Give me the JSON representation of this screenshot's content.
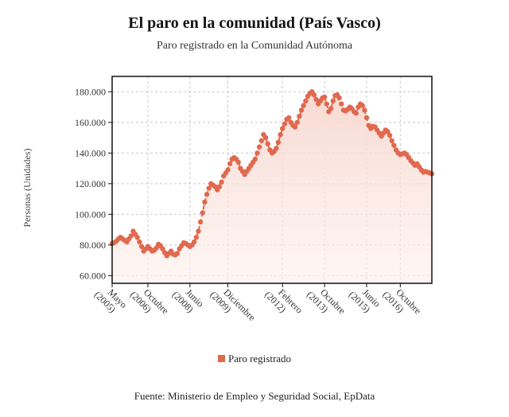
{
  "chart_data": {
    "type": "line",
    "title": "El paro en la comunidad (País Vasco)",
    "subtitle": "Paro registrado en la Comunidad Autónoma",
    "ylabel": "Personas (Unidades)",
    "xlabel": "",
    "ylim": [
      55000,
      190000
    ],
    "yticks": [
      60000,
      80000,
      100000,
      120000,
      140000,
      160000,
      180000
    ],
    "ytick_labels": [
      "60.000",
      "80.000",
      "100.000",
      "120.000",
      "140.000",
      "160.000",
      "180.000"
    ],
    "xticks": [
      {
        "index": 0,
        "line1": "Mayo",
        "line2": "(2005)"
      },
      {
        "index": 17,
        "line1": "Octubre",
        "line2": "(2006)"
      },
      {
        "index": 37,
        "line1": "Junio",
        "line2": "(2008)"
      },
      {
        "index": 55,
        "line1": "Diciembre",
        "line2": "(2009)"
      },
      {
        "index": 81,
        "line1": "Febrero",
        "line2": "(2012)"
      },
      {
        "index": 101,
        "line1": "Octubre",
        "line2": "(2013)"
      },
      {
        "index": 121,
        "line1": "Junio",
        "line2": "(2015)"
      },
      {
        "index": 137,
        "line1": "Octubre",
        "line2": "(2016)"
      }
    ],
    "grid": true,
    "legend_position": "bottom",
    "series": [
      {
        "name": "Paro registrado",
        "color": "#e0694e",
        "values": [
          81000,
          81500,
          82500,
          84000,
          85000,
          84000,
          83000,
          82000,
          84000,
          86000,
          89000,
          87000,
          85000,
          82000,
          79000,
          76000,
          77500,
          79000,
          77500,
          76000,
          76500,
          78000,
          80500,
          79500,
          77500,
          75000,
          73000,
          74500,
          76000,
          74000,
          73500,
          74500,
          77500,
          79500,
          81500,
          81000,
          80000,
          79000,
          80000,
          82000,
          85000,
          89000,
          95000,
          101000,
          108000,
          113000,
          117000,
          120000,
          119000,
          118000,
          116000,
          118000,
          121000,
          125000,
          127000,
          129000,
          133000,
          136000,
          137000,
          136000,
          134000,
          130000,
          128000,
          126000,
          128000,
          130000,
          132000,
          134000,
          136000,
          140000,
          144000,
          148000,
          152000,
          150000,
          146000,
          142000,
          140000,
          141000,
          143000,
          147000,
          152000,
          156000,
          159000,
          162000,
          163000,
          160000,
          158000,
          157000,
          160000,
          164000,
          168000,
          171000,
          174000,
          177000,
          179000,
          180000,
          178000,
          175000,
          172000,
          174000,
          176000,
          176500,
          172000,
          167000,
          169000,
          174000,
          177500,
          178000,
          176000,
          172000,
          168000,
          167500,
          168500,
          170000,
          169000,
          167000,
          166000,
          170000,
          172000,
          171000,
          168000,
          163000,
          158000,
          156000,
          157500,
          157000,
          155000,
          153000,
          151000,
          153000,
          155000,
          154000,
          151500,
          148000,
          145000,
          142000,
          140000,
          139000,
          139500,
          140000,
          139000,
          137000,
          135000,
          133500,
          132000,
          133000,
          131000,
          129000,
          127500,
          128000,
          127500,
          127000,
          126500
        ]
      }
    ]
  },
  "source": "Fuente: Ministerio de Empleo y Seguridad Social, EpData"
}
